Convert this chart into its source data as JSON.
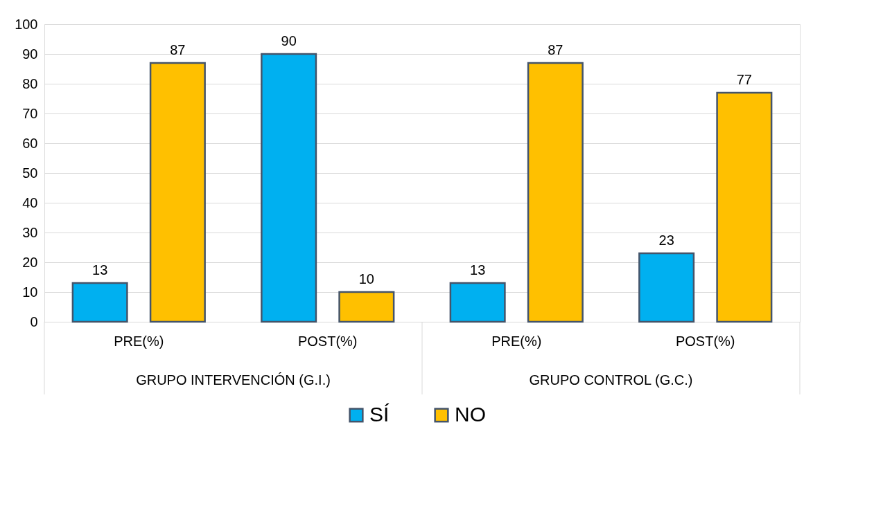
{
  "chart_data": {
    "type": "bar",
    "categories": [
      "PRE(%)",
      "POST(%)",
      "PRE(%)",
      "POST(%)"
    ],
    "series": [
      {
        "name": "SÍ",
        "color": "#00b0f0",
        "values": [
          13,
          90,
          13,
          23
        ]
      },
      {
        "name": "NO",
        "color": "#ffc000",
        "values": [
          87,
          10,
          87,
          77
        ]
      }
    ],
    "annotations": [
      "GRUPO INTERVENCIÓN (G.I.)",
      "GRUPO CONTROL (G.C.)"
    ],
    "ylim": [
      0,
      100
    ],
    "yticks": [
      0,
      10,
      20,
      30,
      40,
      50,
      60,
      70,
      80,
      90,
      100
    ],
    "grid": "y",
    "legend": "bottom",
    "data_labels": true
  }
}
